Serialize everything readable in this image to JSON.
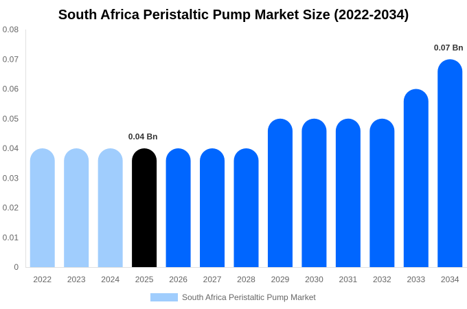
{
  "chart_data": {
    "type": "bar",
    "title": "South Africa Peristaltic Pump Market Size (2022-2034)",
    "categories": [
      "2022",
      "2023",
      "2024",
      "2025",
      "2026",
      "2027",
      "2028",
      "2029",
      "2030",
      "2031",
      "2032",
      "2033",
      "2034"
    ],
    "series": [
      {
        "name": "South Africa Peristaltic Pump Market",
        "values": [
          0.04,
          0.04,
          0.04,
          0.04,
          0.04,
          0.04,
          0.04,
          0.05,
          0.05,
          0.05,
          0.05,
          0.06,
          0.07
        ]
      }
    ],
    "bar_colors": [
      "#a0cdfd",
      "#a0cdfd",
      "#a0cdfd",
      "#000000",
      "#0066ff",
      "#0066ff",
      "#0066ff",
      "#0066ff",
      "#0066ff",
      "#0066ff",
      "#0066ff",
      "#0066ff",
      "#0066ff"
    ],
    "data_labels": [
      {
        "index": 3,
        "text": "0.04 Bn"
      },
      {
        "index": 12,
        "text": "0.07 Bn"
      }
    ],
    "yticks": [
      "0",
      "0.01",
      "0.02",
      "0.03",
      "0.04",
      "0.05",
      "0.06",
      "0.07",
      "0.08"
    ],
    "ylim": [
      0,
      0.08
    ],
    "xlabel": "",
    "ylabel": "",
    "grid": false,
    "legend_position": "bottom",
    "legend_color": "#a0cdfd"
  }
}
